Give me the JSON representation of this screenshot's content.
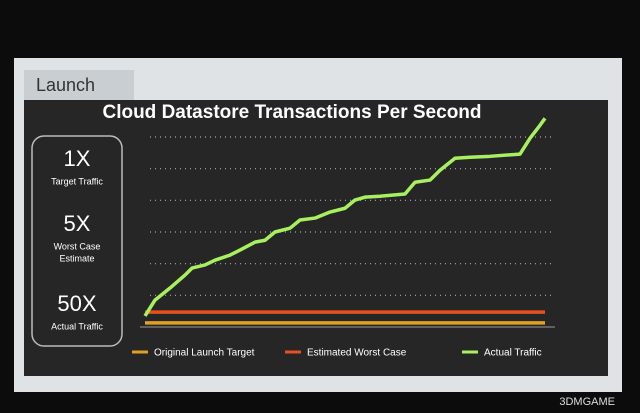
{
  "header": {
    "title": "Launch"
  },
  "callouts": [
    {
      "big": "1X",
      "small": [
        "Target Traffic"
      ]
    },
    {
      "big": "5X",
      "small": [
        "Worst Case",
        "Estimate"
      ]
    },
    {
      "big": "50X",
      "small": [
        "Actual Traffic"
      ]
    }
  ],
  "watermark": "3DMGAME",
  "chart_data": {
    "type": "line",
    "title": "Cloud Datastore Transactions Per Second",
    "xlim": [
      0,
      100
    ],
    "ylim": [
      0,
      6.6
    ],
    "yticks": [
      1,
      2,
      3,
      4,
      5,
      6
    ],
    "grid": true,
    "legend": "bottom",
    "series": [
      {
        "name": "Original Launch Target",
        "color": "#e0a020",
        "x": [
          0,
          100
        ],
        "values": [
          0.13,
          0.13
        ]
      },
      {
        "name": "Estimated Worst Case",
        "color": "#e8501e",
        "x": [
          0,
          100
        ],
        "values": [
          0.47,
          0.47
        ]
      },
      {
        "name": "Actual Traffic",
        "color": "#a8f060",
        "x": [
          0,
          2.5,
          6.25,
          10,
          11.75,
          15,
          17.5,
          21.25,
          23.75,
          27.5,
          30,
          32.5,
          36.25,
          38.75,
          42.5,
          46.25,
          50,
          52.5,
          55,
          58.75,
          65,
          67.5,
          71.25,
          73.75,
          77.5,
          81.25,
          86.25,
          93.75,
          96.25,
          98.75,
          100
        ],
        "values": [
          0.35,
          0.85,
          1.23,
          1.64,
          1.86,
          1.96,
          2.11,
          2.27,
          2.43,
          2.68,
          2.74,
          3.0,
          3.12,
          3.38,
          3.44,
          3.63,
          3.75,
          4.01,
          4.1,
          4.13,
          4.2,
          4.57,
          4.64,
          4.95,
          5.33,
          5.36,
          5.39,
          5.46,
          5.96,
          6.37,
          6.59
        ]
      }
    ]
  }
}
